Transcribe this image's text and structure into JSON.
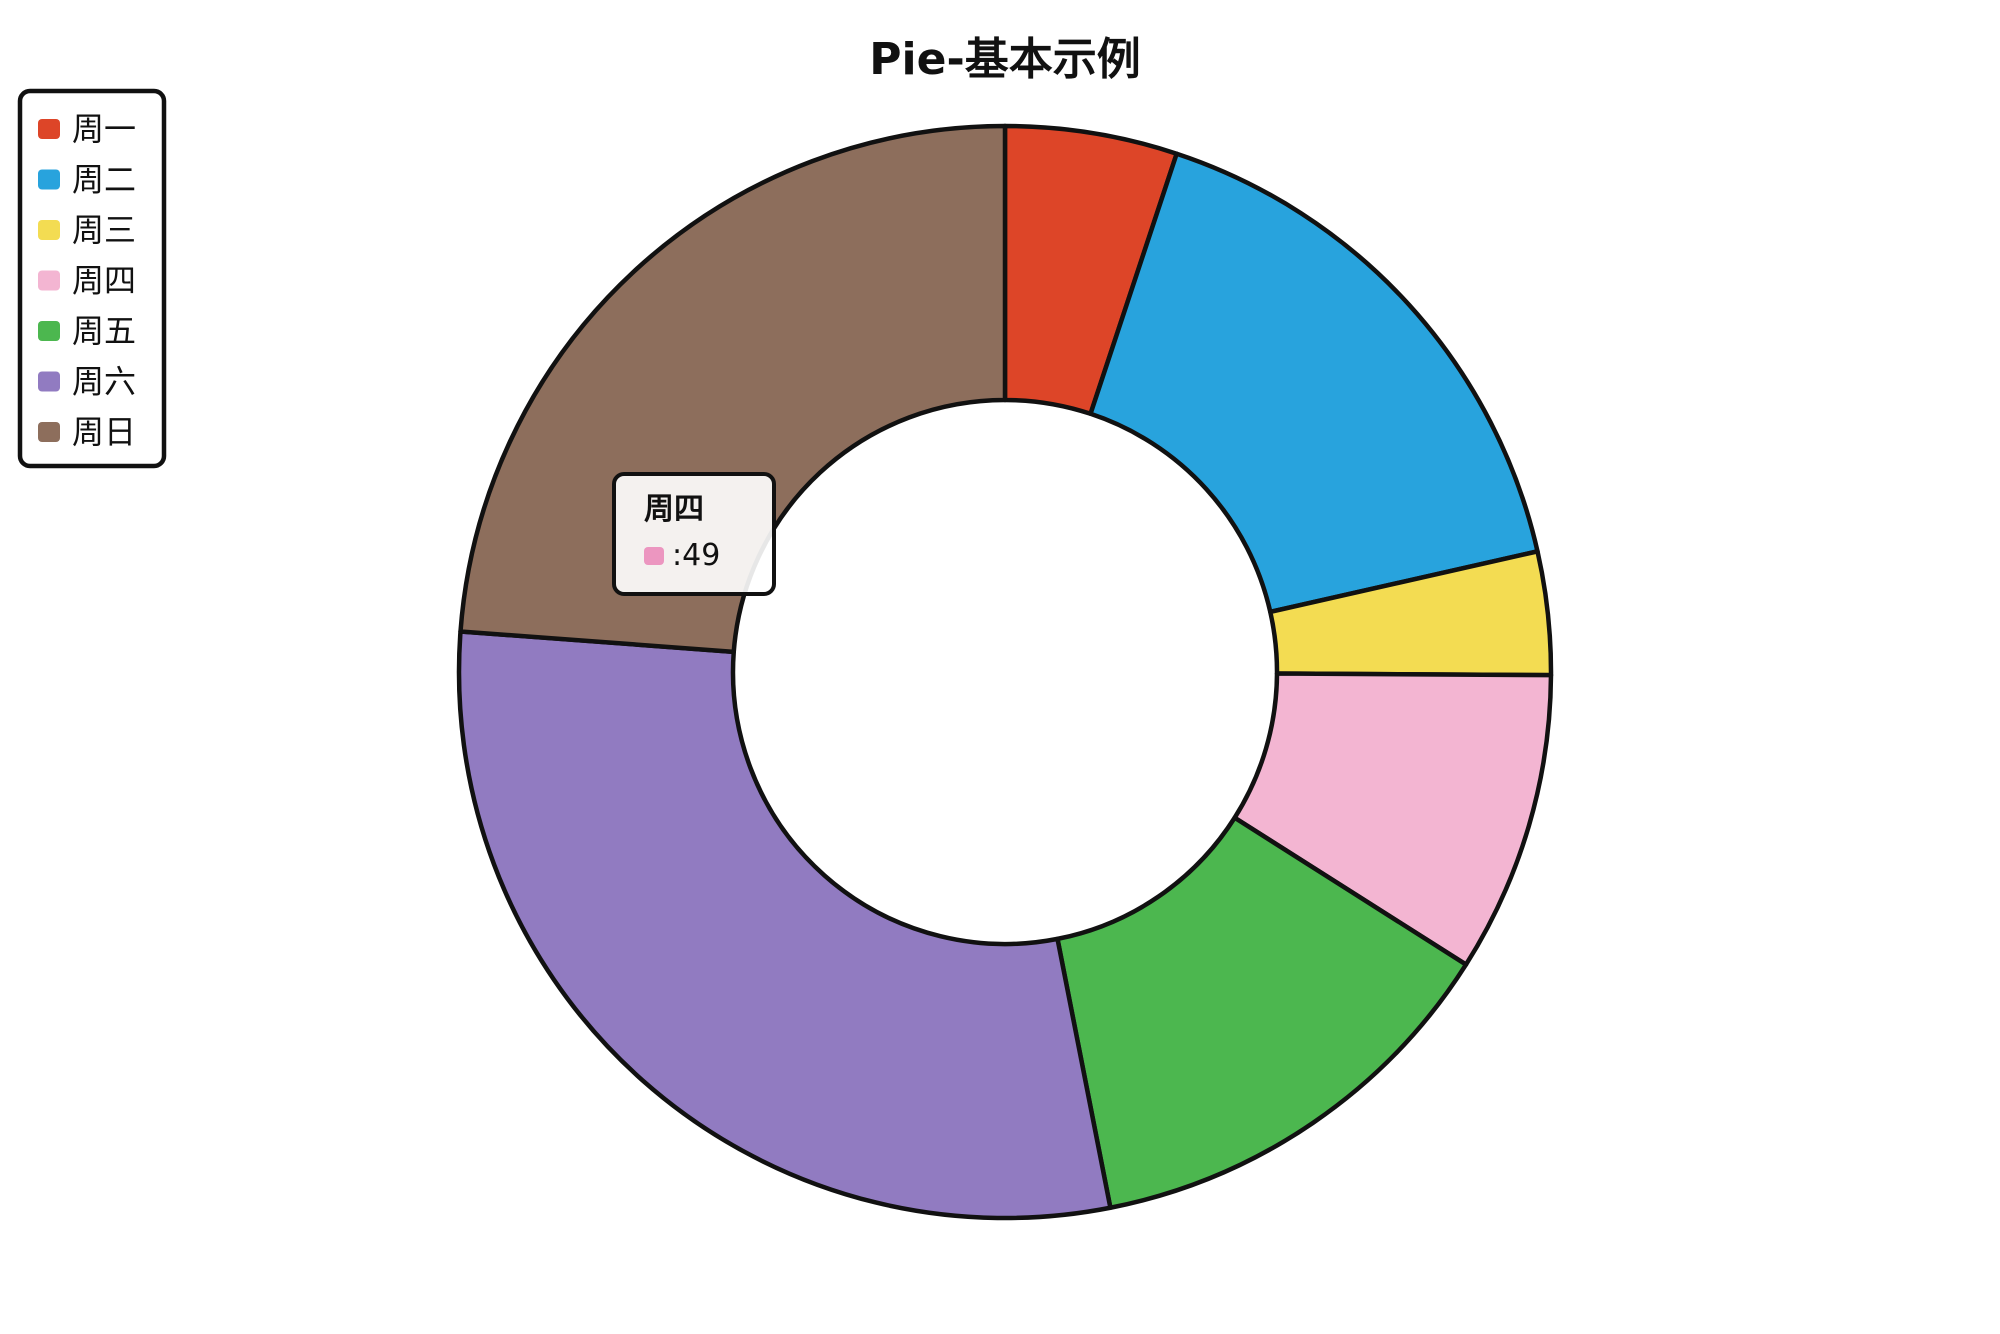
{
  "chart_data": {
    "type": "pie",
    "title": "Pie-基本示例",
    "categories": [
      "周一",
      "周二",
      "周三",
      "周四",
      "周五",
      "周六",
      "周日"
    ],
    "values": [
      28,
      90,
      20,
      49,
      71,
      161,
      131
    ],
    "colors": [
      "#DD4528",
      "#28A3DD",
      "#F3DC52",
      "#F3B5D2",
      "#4CB74F",
      "#917BC1",
      "#8D6E5C"
    ],
    "donut": true,
    "legend": {
      "position": "top-left",
      "orient": "vertical"
    }
  },
  "tooltip": {
    "title": "周四",
    "separator": ": ",
    "value": "49",
    "color": "#EC96C0"
  }
}
